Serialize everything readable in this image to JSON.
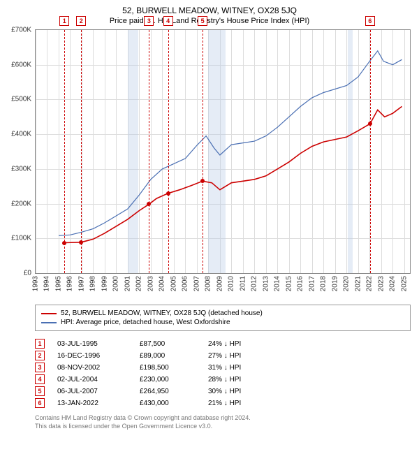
{
  "title": "52, BURWELL MEADOW, WITNEY, OX28 5JQ",
  "subtitle": "Price paid vs. HM Land Registry's House Price Index (HPI)",
  "chart": {
    "type": "line",
    "xmin": 1993,
    "xmax": 2025.5,
    "ymin": 0,
    "ymax": 700000,
    "ytick_step": 100000,
    "yticks_labels": [
      "£0",
      "£100K",
      "£200K",
      "£300K",
      "£400K",
      "£500K",
      "£600K",
      "£700K"
    ],
    "xticks": [
      1993,
      1994,
      1995,
      1996,
      1997,
      1998,
      1999,
      2000,
      2001,
      2002,
      2003,
      2004,
      2005,
      2006,
      2007,
      2008,
      2009,
      2010,
      2011,
      2012,
      2013,
      2014,
      2015,
      2016,
      2017,
      2018,
      2019,
      2020,
      2021,
      2022,
      2023,
      2024,
      2025
    ],
    "background_color": "#ffffff",
    "grid_color": "#dddddd",
    "recession_bands": [
      {
        "start": 2001.0,
        "end": 2001.9
      },
      {
        "start": 2008.0,
        "end": 2009.5
      },
      {
        "start": 2020.1,
        "end": 2020.5
      }
    ],
    "series_hpi": {
      "color": "#4a6fb3",
      "width": 1.2,
      "points": [
        [
          1995.0,
          108000
        ],
        [
          1996.0,
          110000
        ],
        [
          1997.0,
          118000
        ],
        [
          1998.0,
          128000
        ],
        [
          1999.0,
          145000
        ],
        [
          2000.0,
          165000
        ],
        [
          2001.0,
          185000
        ],
        [
          2002.0,
          225000
        ],
        [
          2003.0,
          270000
        ],
        [
          2004.0,
          300000
        ],
        [
          2005.0,
          315000
        ],
        [
          2006.0,
          330000
        ],
        [
          2007.0,
          368000
        ],
        [
          2007.8,
          395000
        ],
        [
          2008.5,
          360000
        ],
        [
          2009.0,
          340000
        ],
        [
          2010.0,
          370000
        ],
        [
          2011.0,
          375000
        ],
        [
          2012.0,
          380000
        ],
        [
          2013.0,
          395000
        ],
        [
          2014.0,
          420000
        ],
        [
          2015.0,
          450000
        ],
        [
          2016.0,
          480000
        ],
        [
          2017.0,
          505000
        ],
        [
          2018.0,
          520000
        ],
        [
          2019.0,
          530000
        ],
        [
          2020.0,
          540000
        ],
        [
          2021.0,
          565000
        ],
        [
          2022.0,
          610000
        ],
        [
          2022.7,
          640000
        ],
        [
          2023.2,
          610000
        ],
        [
          2024.0,
          600000
        ],
        [
          2024.8,
          615000
        ]
      ]
    },
    "series_prop": {
      "color": "#cc0000",
      "width": 1.6,
      "points": [
        [
          1995.5,
          87500
        ],
        [
          1996.96,
          89000
        ],
        [
          1998.0,
          98000
        ],
        [
          1999.0,
          115000
        ],
        [
          2000.0,
          135000
        ],
        [
          2001.0,
          155000
        ],
        [
          2002.0,
          180000
        ],
        [
          2002.85,
          198500
        ],
        [
          2003.5,
          215000
        ],
        [
          2004.5,
          230000
        ],
        [
          2005.5,
          240000
        ],
        [
          2006.5,
          252000
        ],
        [
          2007.5,
          264950
        ],
        [
          2008.3,
          260000
        ],
        [
          2009.0,
          240000
        ],
        [
          2010.0,
          260000
        ],
        [
          2011.0,
          265000
        ],
        [
          2012.0,
          270000
        ],
        [
          2013.0,
          280000
        ],
        [
          2014.0,
          300000
        ],
        [
          2015.0,
          320000
        ],
        [
          2016.0,
          345000
        ],
        [
          2017.0,
          365000
        ],
        [
          2018.0,
          378000
        ],
        [
          2019.0,
          385000
        ],
        [
          2020.0,
          392000
        ],
        [
          2021.0,
          410000
        ],
        [
          2022.04,
          430000
        ],
        [
          2022.7,
          470000
        ],
        [
          2023.3,
          450000
        ],
        [
          2024.0,
          460000
        ],
        [
          2024.8,
          480000
        ]
      ]
    },
    "sale_markers": [
      {
        "n": "1",
        "x": 1995.5,
        "y": 87500,
        "color": "#cc0000"
      },
      {
        "n": "2",
        "x": 1996.96,
        "y": 89000,
        "color": "#cc0000"
      },
      {
        "n": "3",
        "x": 2002.85,
        "y": 198500,
        "color": "#cc0000"
      },
      {
        "n": "4",
        "x": 2004.5,
        "y": 230000,
        "color": "#cc0000"
      },
      {
        "n": "5",
        "x": 2007.5,
        "y": 264950,
        "color": "#cc0000"
      },
      {
        "n": "6",
        "x": 2022.04,
        "y": 430000,
        "color": "#cc0000"
      }
    ]
  },
  "legend": {
    "series1": {
      "label": "52, BURWELL MEADOW, WITNEY, OX28 5JQ (detached house)",
      "color": "#cc0000"
    },
    "series2": {
      "label": "HPI: Average price, detached house, West Oxfordshire",
      "color": "#4a6fb3"
    }
  },
  "sales_table": {
    "rows": [
      {
        "n": "1",
        "date": "03-JUL-1995",
        "price": "£87,500",
        "pct": "24% ↓ HPI",
        "color": "#cc0000"
      },
      {
        "n": "2",
        "date": "16-DEC-1996",
        "price": "£89,000",
        "pct": "27% ↓ HPI",
        "color": "#cc0000"
      },
      {
        "n": "3",
        "date": "08-NOV-2002",
        "price": "£198,500",
        "pct": "31% ↓ HPI",
        "color": "#cc0000"
      },
      {
        "n": "4",
        "date": "02-JUL-2004",
        "price": "£230,000",
        "pct": "28% ↓ HPI",
        "color": "#cc0000"
      },
      {
        "n": "5",
        "date": "06-JUL-2007",
        "price": "£264,950",
        "pct": "30% ↓ HPI",
        "color": "#cc0000"
      },
      {
        "n": "6",
        "date": "13-JAN-2022",
        "price": "£430,000",
        "pct": "21% ↓ HPI",
        "color": "#cc0000"
      }
    ]
  },
  "footer": {
    "line1": "Contains HM Land Registry data © Crown copyright and database right 2024.",
    "line2": "This data is licensed under the Open Government Licence v3.0."
  }
}
